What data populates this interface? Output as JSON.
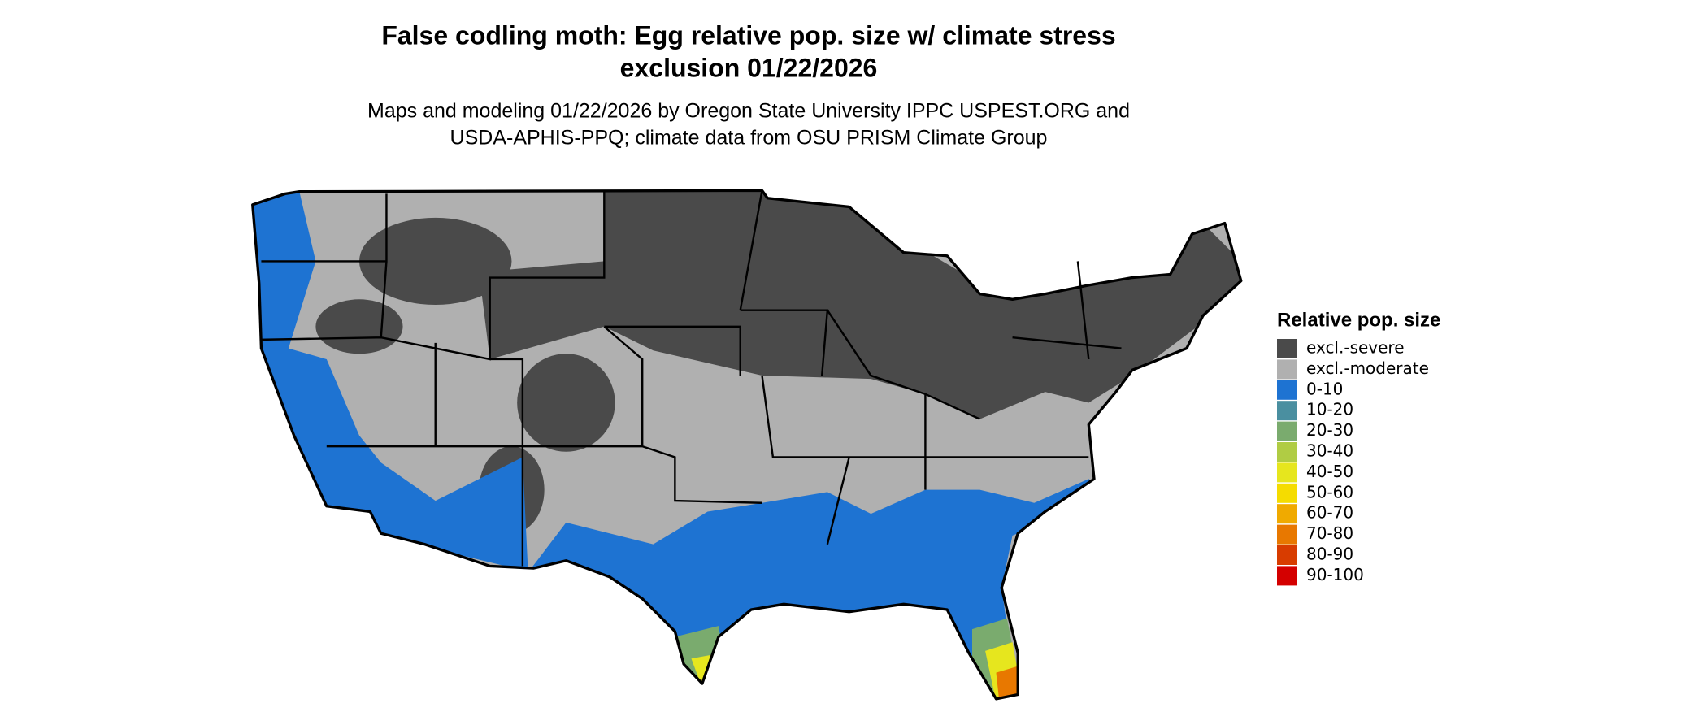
{
  "header": {
    "title_lines": [
      "False codling moth: Egg relative pop. size w/ climate stress",
      "exclusion 01/22/2026"
    ],
    "subtitle_lines": [
      "Maps and modeling 01/22/2026 by Oregon State University IPPC USPEST.ORG and",
      "USDA-APHIS-PPQ; climate data from OSU PRISM Climate Group"
    ]
  },
  "legend": {
    "title": "Relative pop. size",
    "items": [
      {
        "label": "excl.-severe",
        "color": "#4a4a4a"
      },
      {
        "label": "excl.-moderate",
        "color": "#b0b0b0"
      },
      {
        "label": "0-10",
        "color": "#1e73d2"
      },
      {
        "label": "10-20",
        "color": "#4a8fa0"
      },
      {
        "label": "20-30",
        "color": "#7aab6e"
      },
      {
        "label": "30-40",
        "color": "#b0cc44"
      },
      {
        "label": "40-50",
        "color": "#e6e61e"
      },
      {
        "label": "50-60",
        "color": "#f5dc00"
      },
      {
        "label": "60-70",
        "color": "#f0aa00"
      },
      {
        "label": "70-80",
        "color": "#e87800"
      },
      {
        "label": "80-90",
        "color": "#d83c00"
      },
      {
        "label": "90-100",
        "color": "#d40000"
      }
    ]
  }
}
